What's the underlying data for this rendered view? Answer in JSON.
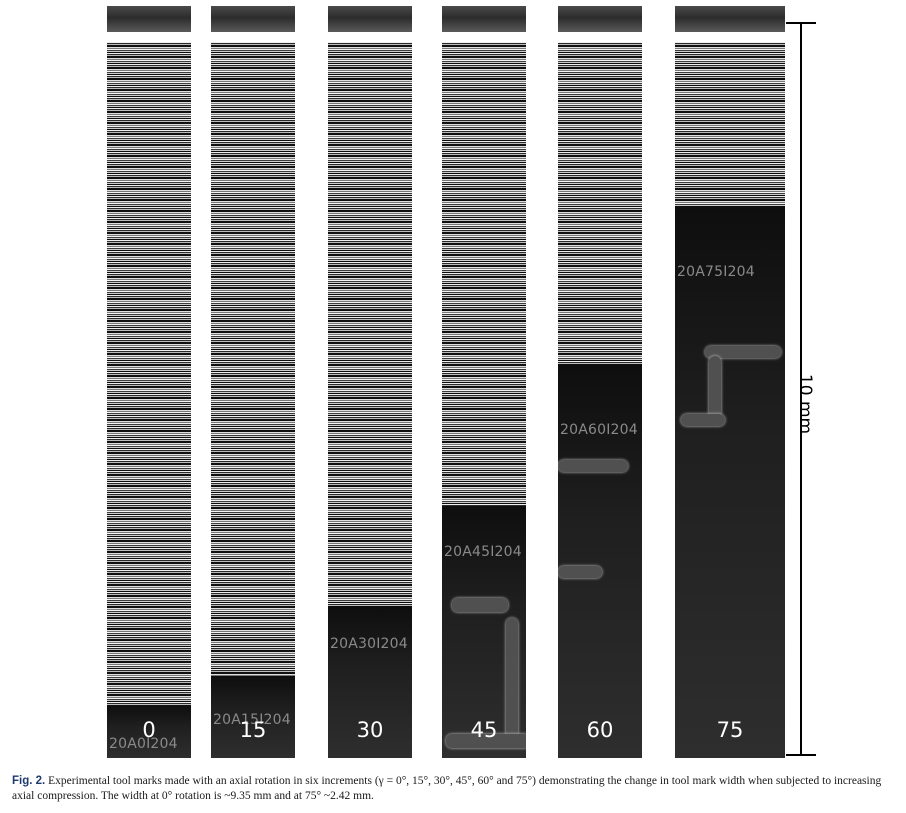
{
  "figure": {
    "strips": [
      {
        "angle_label": "0",
        "engraving": "20A0I204"
      },
      {
        "angle_label": "15",
        "engraving": "20A15I204"
      },
      {
        "angle_label": "30",
        "engraving": "20A30I204"
      },
      {
        "angle_label": "45",
        "engraving": "20A45I204"
      },
      {
        "angle_label": "60",
        "engraving": "20A60I204"
      },
      {
        "angle_label": "75",
        "engraving": "20A75I204"
      }
    ],
    "scale_bar_label": "10 mm",
    "tool_mark_widths_mm": {
      "0": 9.35,
      "75": 2.42
    }
  },
  "caption": {
    "figure_id": "Fig. 2.",
    "text": "Experimental tool marks made with an axial rotation in six increments (γ = 0°, 15°, 30°, 45°, 60° and 75°) demonstrating the change in tool mark width when subjected to increasing axial compression. The width at 0° rotation is ~9.35 mm and at 75° ~2.42 mm."
  }
}
